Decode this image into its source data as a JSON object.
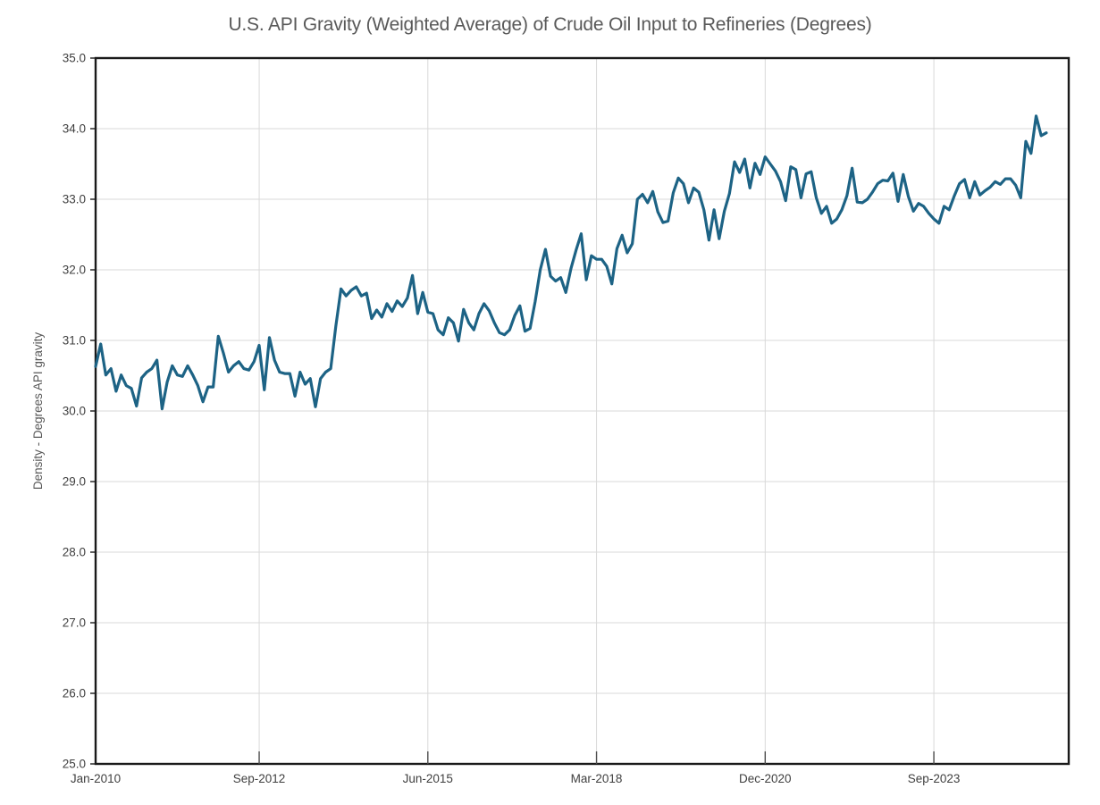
{
  "page": {
    "background": "#ffffff"
  },
  "chart_data": {
    "type": "line",
    "title": "U.S. API Gravity (Weighted Average) of Crude Oil Input to Refineries (Degrees)",
    "xlabel": "",
    "ylabel": "Density - Degrees API gravity",
    "ylim": [
      25.0,
      35.0
    ],
    "y_tick_values": [
      35.0,
      34.0,
      33.0,
      32.0,
      31.0,
      30.0,
      29.0,
      28.0,
      27.0,
      26.0,
      25.0
    ],
    "y_tick_labels": [
      "35.0",
      "34.0",
      "33.0",
      "32.0",
      "31.0",
      "30.0",
      "29.0",
      "28.0",
      "27.0",
      "26.0",
      "25.0"
    ],
    "x_tick_labels": [
      "Jan-2010",
      "Sep-2012",
      "Jun-2015",
      "Mar-2018",
      "Dec-2020",
      "Sep-2023"
    ],
    "x_tick_month_index": [
      0,
      32,
      65,
      98,
      131,
      164
    ],
    "frequency": "monthly",
    "start_period": "Jan-2010",
    "grid": true,
    "legend": "none",
    "colors": {
      "line": "#1d6385",
      "grid": "#d9d9d9",
      "axis_border": "#1a1a1a",
      "title_text": "#595959",
      "tick_text": "#3f3f3f"
    },
    "series": [
      {
        "name": "U.S. API gravity (weighted average) of crude oil input to refineries",
        "values": [
          30.63,
          30.95,
          30.51,
          30.6,
          30.28,
          30.51,
          30.36,
          30.32,
          30.07,
          30.47,
          30.55,
          30.6,
          30.72,
          30.03,
          30.41,
          30.64,
          30.51,
          30.49,
          30.64,
          30.51,
          30.36,
          30.13,
          30.34,
          30.34,
          31.06,
          30.82,
          30.55,
          30.64,
          30.7,
          30.6,
          30.58,
          30.7,
          30.93,
          30.3,
          31.04,
          30.72,
          30.55,
          30.53,
          30.53,
          30.21,
          30.55,
          30.38,
          30.46,
          30.06,
          30.46,
          30.55,
          30.6,
          31.2,
          31.73,
          31.63,
          31.71,
          31.76,
          31.63,
          31.67,
          31.31,
          31.43,
          31.33,
          31.52,
          31.41,
          31.56,
          31.48,
          31.6,
          31.92,
          31.38,
          31.68,
          31.4,
          31.38,
          31.15,
          31.08,
          31.32,
          31.25,
          30.99,
          31.44,
          31.25,
          31.15,
          31.38,
          31.52,
          31.42,
          31.25,
          31.11,
          31.08,
          31.15,
          31.35,
          31.49,
          31.13,
          31.17,
          31.55,
          32.0,
          32.29,
          31.91,
          31.84,
          31.89,
          31.68,
          32.02,
          32.28,
          32.51,
          31.86,
          32.2,
          32.15,
          32.15,
          32.05,
          31.8,
          32.3,
          32.49,
          32.24,
          32.37,
          33.0,
          33.07,
          32.95,
          33.11,
          32.82,
          32.67,
          32.69,
          33.09,
          33.3,
          33.22,
          32.95,
          33.16,
          33.1,
          32.85,
          32.42,
          32.85,
          32.44,
          32.83,
          33.08,
          33.53,
          33.38,
          33.57,
          33.16,
          33.51,
          33.35,
          33.6,
          33.5,
          33.4,
          33.25,
          32.98,
          33.46,
          33.42,
          33.02,
          33.36,
          33.39,
          33.02,
          32.8,
          32.9,
          32.66,
          32.72,
          32.85,
          33.05,
          33.44,
          32.96,
          32.95,
          33.0,
          33.1,
          33.22,
          33.27,
          33.26,
          33.37,
          32.97,
          33.35,
          33.04,
          32.83,
          32.94,
          32.9,
          32.8,
          32.72,
          32.66,
          32.9,
          32.85,
          33.05,
          33.22,
          33.28,
          33.02,
          33.25,
          33.06,
          33.12,
          33.17,
          33.25,
          33.21,
          33.29,
          33.29,
          33.2,
          33.02,
          33.82,
          33.65,
          34.18,
          33.9,
          33.94
        ]
      }
    ]
  }
}
